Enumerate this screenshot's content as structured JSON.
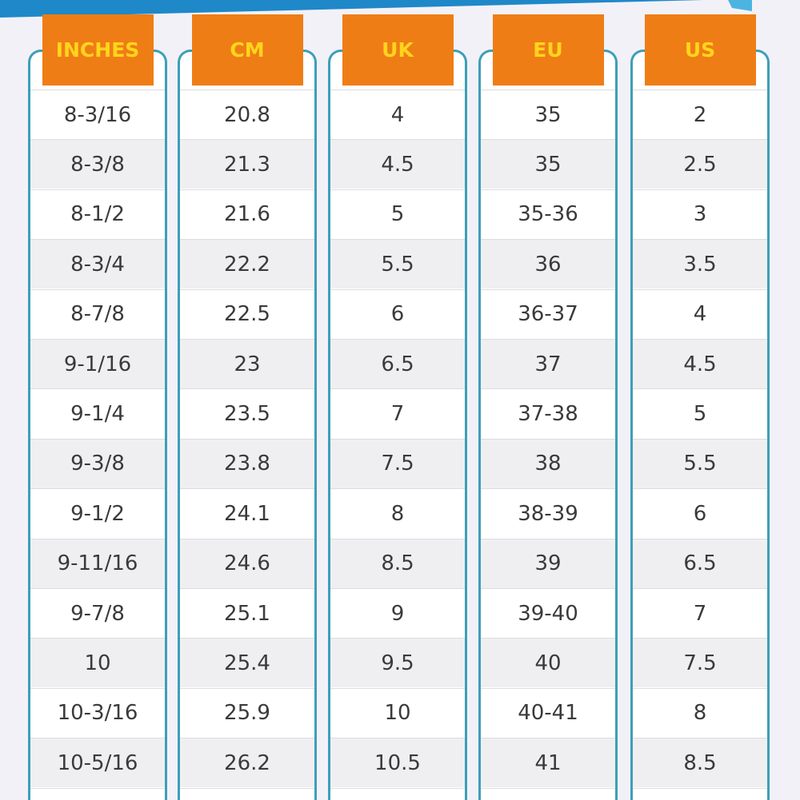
{
  "columns": [
    {
      "header": "INCHES",
      "cells": [
        "8-3/16",
        "8-3/8",
        "8-1/2",
        "8-3/4",
        "8-7/8",
        "9-1/16",
        "9-1/4",
        "9-3/8",
        "9-1/2",
        "9-11/16",
        "9-7/8",
        "10",
        "10-3/16",
        "10-5/16"
      ]
    },
    {
      "header": "CM",
      "cells": [
        "20.8",
        "21.3",
        "21.6",
        "22.2",
        "22.5",
        "23",
        "23.5",
        "23.8",
        "24.1",
        "24.6",
        "25.1",
        "25.4",
        "25.9",
        "26.2"
      ]
    },
    {
      "header": "UK",
      "cells": [
        "4",
        "4.5",
        "5",
        "5.5",
        "6",
        "6.5",
        "7",
        "7.5",
        "8",
        "8.5",
        "9",
        "9.5",
        "10",
        "10.5"
      ]
    },
    {
      "header": "EU",
      "cells": [
        "35",
        "35",
        "35-36",
        "36",
        "36-37",
        "37",
        "37-38",
        "38",
        "38-39",
        "39",
        "39-40",
        "40",
        "40-41",
        "41"
      ]
    },
    {
      "header": "US",
      "cells": [
        "2",
        "2.5",
        "3",
        "3.5",
        "4",
        "4.5",
        "5",
        "5.5",
        "6",
        "6.5",
        "7",
        "7.5",
        "8",
        "8.5"
      ]
    }
  ]
}
